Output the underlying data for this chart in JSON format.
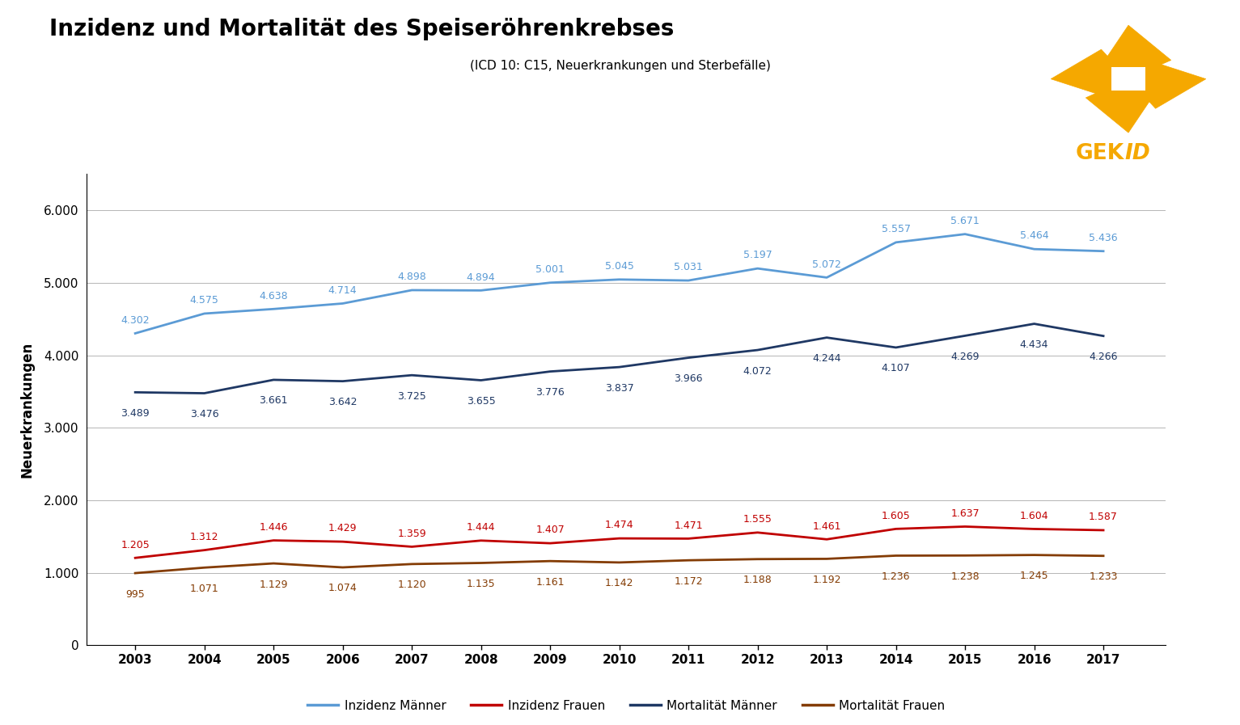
{
  "title": "Inzidenz und Mortalität des Speiseröhrenkrebses",
  "subtitle": "(ICD 10: C15, Neuerkrankungen und Sterbefälle)",
  "ylabel": "Neuerkrankungen",
  "years": [
    2003,
    2004,
    2005,
    2006,
    2007,
    2008,
    2009,
    2010,
    2011,
    2012,
    2013,
    2014,
    2015,
    2016,
    2017
  ],
  "inzidenz_maenner": [
    4302,
    4575,
    4638,
    4714,
    4898,
    4894,
    5001,
    5045,
    5031,
    5197,
    5072,
    5557,
    5671,
    5464,
    5436
  ],
  "inzidenz_frauen": [
    1205,
    1312,
    1446,
    1429,
    1359,
    1444,
    1407,
    1474,
    1471,
    1555,
    1461,
    1605,
    1637,
    1604,
    1587
  ],
  "mortalitaet_maenner": [
    3489,
    3476,
    3661,
    3642,
    3725,
    3655,
    3776,
    3837,
    3966,
    4072,
    4244,
    4107,
    4269,
    4434,
    4266
  ],
  "mortalitaet_frauen": [
    995,
    1071,
    1129,
    1074,
    1120,
    1135,
    1161,
    1142,
    1172,
    1188,
    1192,
    1236,
    1238,
    1245,
    1233
  ],
  "color_inzidenz_maenner": "#5B9BD5",
  "color_inzidenz_frauen": "#C00000",
  "color_mortalitaet_maenner": "#1F3864",
  "color_mortalitaet_frauen": "#843C04",
  "ylim": [
    0,
    6500
  ],
  "yticks": [
    0,
    1000,
    2000,
    3000,
    4000,
    5000,
    6000
  ],
  "ytick_labels": [
    "0",
    "1.000",
    "2.000",
    "3.000",
    "4.000",
    "5.000",
    "6.000"
  ],
  "legend_labels": [
    "Inzidenz Männer",
    "Inzidenz Frauen",
    "Mortalität Männer",
    "Mortalität Frauen"
  ],
  "background_color": "#FFFFFF",
  "grid_color": "#AAAAAA",
  "logo_color": "#F5A800"
}
